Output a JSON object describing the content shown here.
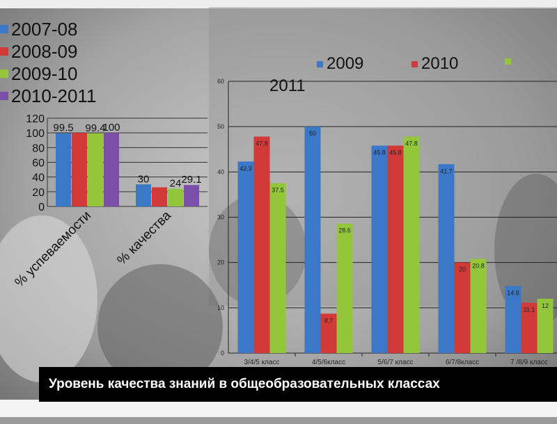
{
  "caption": "Уровень качества знаний в общеобразовательных классах",
  "left_legend": [
    {
      "label": "2007-08",
      "color": "#3b78c8"
    },
    {
      "label": "2008-09",
      "color": "#d23a3a"
    },
    {
      "label": "2009-10",
      "color": "#93c63b"
    },
    {
      "label": "2010-2011",
      "color": "#7b4fa8"
    }
  ],
  "right_legend": [
    {
      "label": "2009",
      "color": "#3b78c8"
    },
    {
      "label": "2010",
      "color": "#d23a3a"
    },
    {
      "label": "2011",
      "color": "#93c63b"
    }
  ],
  "chart_data": [
    {
      "type": "bar",
      "categories": [
        "% успеваемости",
        "% качества"
      ],
      "ylim": [
        0,
        120
      ],
      "yticks": [
        "0",
        "20",
        "40",
        "60",
        "80",
        "100",
        "120"
      ],
      "series": [
        {
          "name": "2007-08",
          "color": "#3b78c8",
          "values": [
            99.5,
            30
          ],
          "labels": [
            "99.5",
            "30"
          ]
        },
        {
          "name": "2008-09",
          "color": "#d23a3a",
          "values": [
            100,
            26
          ],
          "labels": [
            "",
            ""
          ]
        },
        {
          "name": "2009-10",
          "color": "#93c63b",
          "values": [
            99.4,
            24
          ],
          "labels": [
            "99.4",
            "24"
          ]
        },
        {
          "name": "2010-2011",
          "color": "#7b4fa8",
          "values": [
            100,
            29.1
          ],
          "labels": [
            "100",
            "29.1"
          ]
        }
      ],
      "grid": true,
      "legend": "top-left"
    },
    {
      "type": "bar",
      "categories": [
        "3/4/5 класс",
        "4/5/6класс",
        "5/6/7 класс",
        "6/7/8класс",
        "7 /8/9 класс"
      ],
      "ylim": [
        0,
        60
      ],
      "yticks": [
        "0",
        "10",
        "20",
        "30",
        "40",
        "50",
        "60"
      ],
      "series": [
        {
          "name": "2009",
          "color": "#3b78c8",
          "values": [
            42.3,
            50,
            45.8,
            41.7,
            14.8
          ],
          "labels": [
            "42.3",
            "50",
            "45.8",
            "41.7",
            "14.8"
          ]
        },
        {
          "name": "2010",
          "color": "#d23a3a",
          "values": [
            47.8,
            8.7,
            45.8,
            20,
            11.1
          ],
          "labels": [
            "47.8",
            "8.7",
            "45.8",
            "20",
            "11.1"
          ]
        },
        {
          "name": "2011",
          "color": "#93c63b",
          "values": [
            37.5,
            28.6,
            47.8,
            20.8,
            12
          ],
          "labels": [
            "37.5",
            "28.6",
            "47.8",
            "20.8",
            "12"
          ]
        }
      ],
      "grid": true,
      "legend": "top"
    }
  ]
}
